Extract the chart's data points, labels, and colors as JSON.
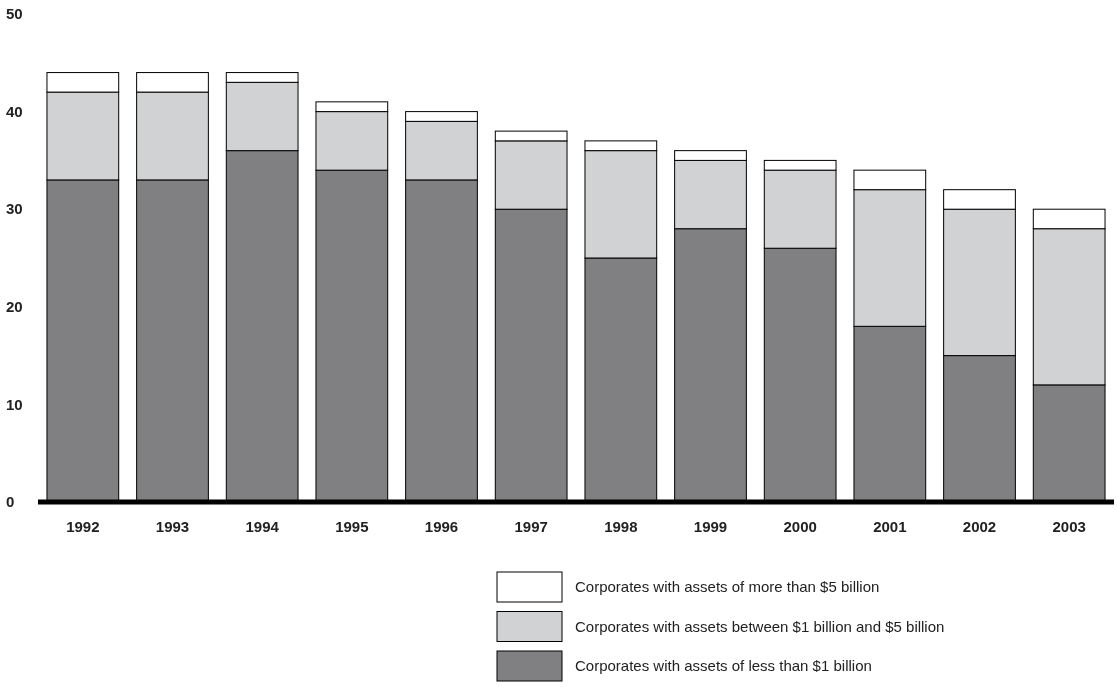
{
  "chart_data": {
    "type": "bar",
    "stacked": true,
    "categories": [
      "1992",
      "1993",
      "1994",
      "1995",
      "1996",
      "1997",
      "1998",
      "1999",
      "2000",
      "2001",
      "2002",
      "2003"
    ],
    "series": [
      {
        "name": "Corporates with assets of less than $1 billion",
        "color": "#808083",
        "values": [
          33,
          33,
          36,
          34,
          33,
          30,
          25,
          28,
          26,
          18,
          15,
          12
        ]
      },
      {
        "name": "Corporates with assets between $1 billion and $5 billion",
        "color": "#d1d2d4",
        "values": [
          9,
          9,
          7,
          6,
          6,
          7,
          11,
          7,
          8,
          14,
          15,
          16
        ]
      },
      {
        "name": "Corporates with assets of more than $5 billion",
        "color": "#ffffff",
        "values": [
          2,
          2,
          1,
          1,
          1,
          1,
          1,
          1,
          1,
          2,
          2,
          2
        ]
      }
    ],
    "ylim": [
      0,
      50
    ],
    "yticks": [
      0,
      10,
      20,
      30,
      40,
      50
    ],
    "grid": false,
    "legend": "bottom right"
  }
}
